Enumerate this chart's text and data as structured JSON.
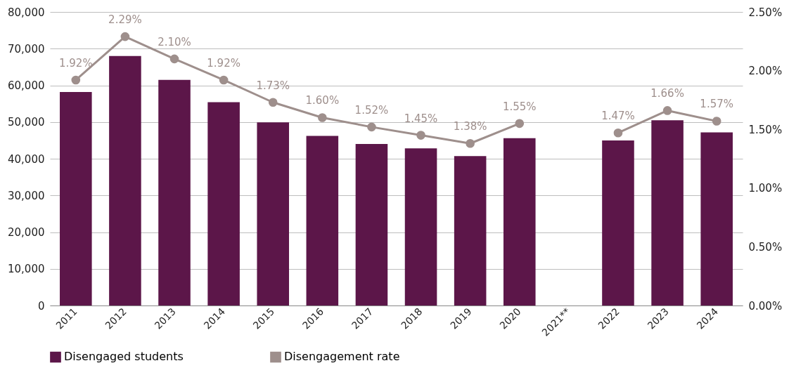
{
  "chart_data": {
    "type": "bar",
    "categories": [
      "2011",
      "2012",
      "2013",
      "2014",
      "2015",
      "2016",
      "2017",
      "2018",
      "2019",
      "2020",
      "2021**",
      "2022",
      "2023",
      "2024"
    ],
    "series": [
      {
        "name": "Disengaged students",
        "color": "#5c1649",
        "values": [
          58200,
          68000,
          61500,
          55400,
          49900,
          46200,
          44000,
          42800,
          40700,
          45600,
          null,
          45000,
          50500,
          47200
        ]
      },
      {
        "name": "Disengagement rate",
        "type": "line",
        "axis": "y2",
        "color": "#9e8f8c",
        "marker": "circle",
        "line_style": "solid",
        "values": [
          1.92,
          2.29,
          2.1,
          1.92,
          1.73,
          1.6,
          1.52,
          1.45,
          1.38,
          1.55,
          null,
          1.47,
          1.66,
          1.57
        ],
        "value_labels": [
          "1.92%",
          "2.29%",
          "2.10%",
          "1.92%",
          "1.73%",
          "1.60%",
          "1.52%",
          "1.45%",
          "1.38%",
          "1.55%",
          null,
          "1.47%",
          "1.66%",
          "1.57%"
        ]
      }
    ],
    "ylim": [
      0,
      80000
    ],
    "yticks": [
      {
        "value": 0,
        "label": "0"
      },
      {
        "value": 10000,
        "label": "10,000"
      },
      {
        "value": 20000,
        "label": "20,000"
      },
      {
        "value": 30000,
        "label": "30,000"
      },
      {
        "value": 40000,
        "label": "40,000"
      },
      {
        "value": 50000,
        "label": "50,000"
      },
      {
        "value": 60000,
        "label": "60,000"
      },
      {
        "value": 70000,
        "label": "70,000"
      },
      {
        "value": 80000,
        "label": "80,000"
      }
    ],
    "y2lim": [
      0,
      2.5
    ],
    "y2ticks": [
      {
        "value": 0,
        "label": "0.00%"
      },
      {
        "value": 0.5,
        "label": "0.50%"
      },
      {
        "value": 1,
        "label": "1.00%"
      },
      {
        "value": 1.5,
        "label": "1.50%"
      },
      {
        "value": 2,
        "label": "2.00%"
      },
      {
        "value": 2.5,
        "label": "2.50%"
      }
    ],
    "grid": "y",
    "legend": "bottom"
  }
}
